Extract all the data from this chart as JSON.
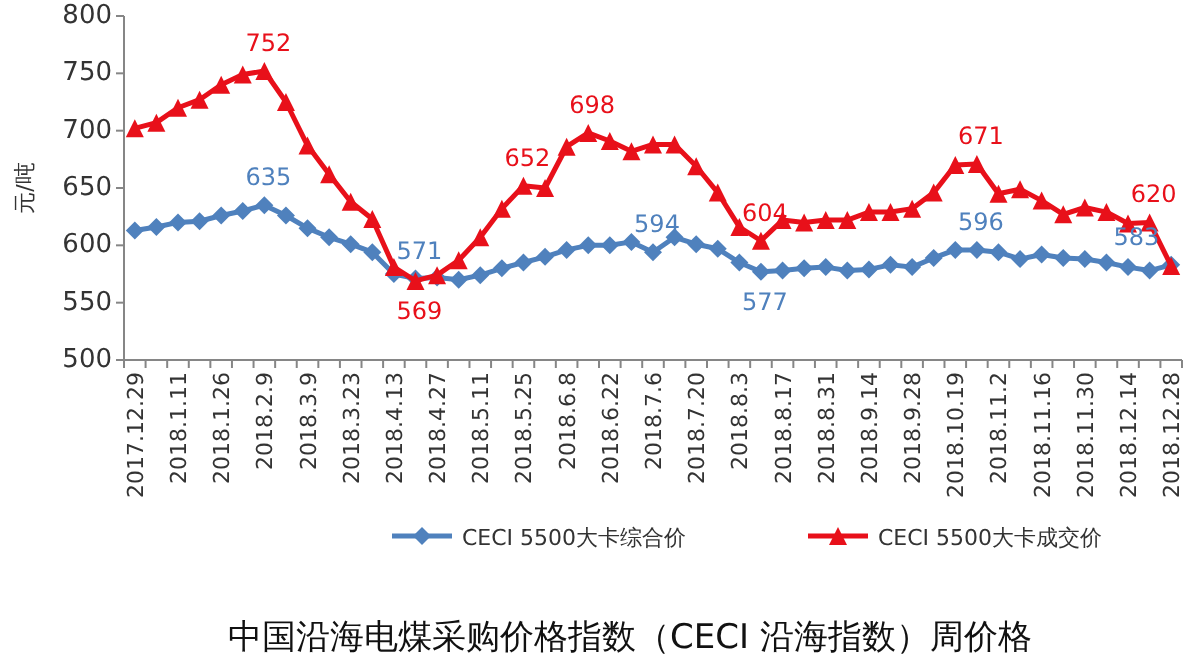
{
  "chart_data": {
    "type": "line",
    "title": "中国沿海电煤采购价格指数（CECI 沿海指数）周价格",
    "ylabel": "元/吨",
    "categories": [
      "2017.12.29",
      null,
      "2018.1.11",
      null,
      "2018.1.26",
      null,
      "2018.2.9",
      null,
      "2018.3.9",
      null,
      "2018.3.23",
      null,
      "2018.4.13",
      null,
      "2018.4.27",
      null,
      "2018.5.11",
      null,
      "2018.5.25",
      null,
      "2018.6.8",
      null,
      "2018.6.22",
      null,
      "2018.7.6",
      null,
      "2018.7.20",
      null,
      "2018.8.3",
      null,
      "2018.8.17",
      null,
      "2018.8.31",
      null,
      "2018.9.14",
      null,
      "2018.9.28",
      null,
      "2018.10.19",
      null,
      "2018.11.2",
      null,
      "2018.11.16",
      null,
      "2018.11.30",
      null,
      "2018.12.14",
      null,
      "2018.12.28"
    ],
    "ylim": [
      500,
      800
    ],
    "yticks": [
      500,
      550,
      600,
      650,
      700,
      750,
      800
    ],
    "legend": "bottom",
    "grid": false,
    "series": [
      {
        "name": "CECI 5500大卡综合价",
        "color": "#4f81bd",
        "marker": "diamond",
        "values": [
          613,
          616,
          620,
          621,
          626,
          630,
          635,
          626,
          615,
          607,
          601,
          594,
          575,
          571,
          572,
          570,
          574,
          580,
          585,
          590,
          596,
          600,
          600,
          603,
          594,
          607,
          601,
          597,
          585,
          577,
          578,
          580,
          581,
          578,
          579,
          583,
          581,
          589,
          596,
          596,
          594,
          588,
          592,
          589,
          588,
          585,
          581,
          578,
          583
        ],
        "value_labels": [
          null,
          null,
          null,
          null,
          null,
          null,
          "635",
          null,
          null,
          null,
          null,
          null,
          null,
          "571",
          null,
          null,
          null,
          null,
          null,
          null,
          null,
          null,
          null,
          null,
          "594",
          null,
          null,
          null,
          null,
          "577",
          null,
          null,
          null,
          null,
          null,
          null,
          null,
          null,
          null,
          "596",
          null,
          null,
          null,
          null,
          null,
          null,
          null,
          null,
          "583"
        ]
      },
      {
        "name": "CECI 5500大卡成交价",
        "color": "#e8101a",
        "marker": "triangle",
        "values": [
          702,
          707,
          720,
          727,
          740,
          749,
          752,
          725,
          687,
          662,
          638,
          623,
          581,
          569,
          574,
          587,
          607,
          632,
          652,
          650,
          686,
          698,
          691,
          682,
          688,
          688,
          669,
          646,
          616,
          604,
          622,
          620,
          622,
          622,
          629,
          629,
          632,
          646,
          670,
          671,
          645,
          649,
          639,
          627,
          633,
          629,
          619,
          620,
          582
        ],
        "value_labels": [
          null,
          null,
          null,
          null,
          null,
          null,
          "752",
          null,
          null,
          null,
          null,
          null,
          null,
          "569",
          null,
          null,
          null,
          null,
          "652",
          null,
          null,
          "698",
          null,
          null,
          null,
          null,
          null,
          null,
          null,
          "604",
          null,
          null,
          null,
          null,
          null,
          null,
          null,
          null,
          null,
          "671",
          null,
          null,
          null,
          null,
          null,
          null,
          null,
          "620",
          null
        ]
      }
    ]
  }
}
